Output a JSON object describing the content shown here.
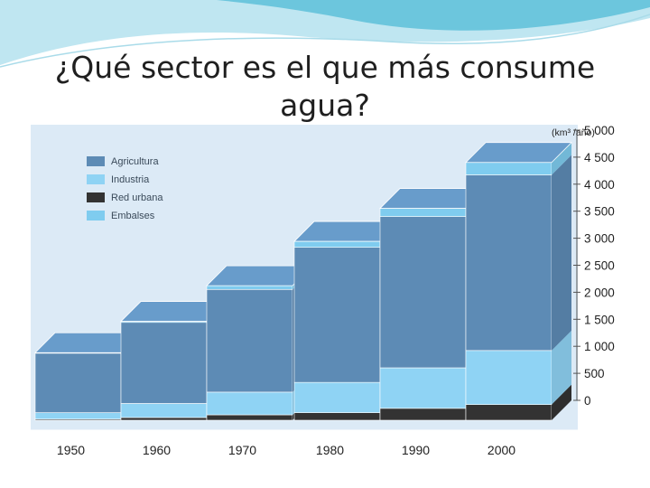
{
  "slide": {
    "title": "¿Qué sector es el que más consume agua?"
  },
  "colors": {
    "agricultura": "#5d8bb5",
    "industria": "#8fd3f4",
    "red_urbana": "#333333",
    "embalses": "#7fccef",
    "background": "#dceaf6",
    "banner": "#6cc6dd"
  },
  "chart_data": {
    "type": "bar",
    "stacked": true,
    "style": "3d",
    "unit_label": "(km³ /año)",
    "categories": [
      "1950",
      "1960",
      "1970",
      "1980",
      "1990",
      "2000"
    ],
    "series": [
      {
        "name": "Red urbana",
        "key": "red_urbana",
        "values": [
          20,
          50,
          100,
          140,
          220,
          290
        ]
      },
      {
        "name": "Industria",
        "key": "industria",
        "values": [
          120,
          260,
          420,
          560,
          750,
          1000
        ]
      },
      {
        "name": "Agricultura",
        "key": "agricultura",
        "values": [
          1100,
          1500,
          1900,
          2500,
          2800,
          3250
        ]
      },
      {
        "name": "Embalses",
        "key": "embalses",
        "values": [
          10,
          20,
          70,
          110,
          150,
          230
        ]
      }
    ],
    "legend": [
      "Agricultura",
      "Industria",
      "Red urbana",
      "Embalses"
    ],
    "ylim": [
      0,
      5000
    ],
    "yticks": [
      0,
      500,
      1000,
      1500,
      2000,
      2500,
      3000,
      3500,
      4000,
      4500,
      5000
    ],
    "ytick_labels": [
      "0",
      "500",
      "1 000",
      "1 500",
      "2 000",
      "2 500",
      "3 000",
      "3 500",
      "4 000",
      "4 500",
      "5 000"
    ],
    "legend_position": "top-left",
    "axis_side": "right"
  }
}
